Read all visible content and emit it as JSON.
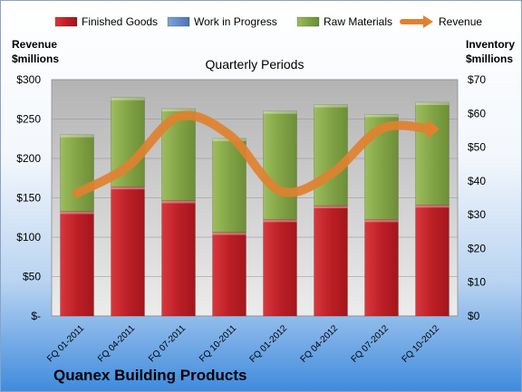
{
  "chart_data": {
    "type": "bar",
    "subtype": "stacked-bar-with-line",
    "title": "Quarterly Periods",
    "company": "Quanex Building Products",
    "left_axis_label": [
      "Revenue",
      "$millions"
    ],
    "right_axis_label": [
      "Inventory",
      "$millions"
    ],
    "left_ticks": [
      "$-",
      "$50",
      "$100",
      "$150",
      "$200",
      "$250",
      "$300"
    ],
    "right_ticks": [
      "$0",
      "$10",
      "$20",
      "$30",
      "$40",
      "$50",
      "$60",
      "$70"
    ],
    "ylim_revenue": [
      0,
      300
    ],
    "ylim_inventory": [
      0,
      70
    ],
    "grid": true,
    "legend_position": "top",
    "categories": [
      "FQ 01-2011",
      "FQ 04-2011",
      "FQ 07-2011",
      "FQ 10-2011",
      "FQ 01-2012",
      "FQ 04-2012",
      "FQ 07-2012",
      "FQ 10-2012"
    ],
    "series": [
      {
        "name": "Finished Goods",
        "axis": "inventory",
        "color": "#c0272d",
        "values": [
          31.0,
          38.3,
          34.2,
          24.8,
          28.6,
          32.7,
          28.6,
          32.9
        ]
      },
      {
        "name": "Work in Progress",
        "axis": "inventory",
        "color": "#5b86c6",
        "values": [
          0,
          0,
          0,
          0,
          0,
          0,
          0,
          0
        ]
      },
      {
        "name": "Raw Materials",
        "axis": "inventory",
        "color": "#8db04b",
        "values": [
          22.7,
          26.4,
          27.2,
          27.8,
          32.1,
          29.9,
          31.1,
          30.4
        ]
      },
      {
        "name": "Revenue",
        "axis": "revenue",
        "type": "line",
        "color": "#e0812f",
        "values": [
          156,
          190,
          253,
          230,
          159,
          180,
          238,
          237
        ]
      }
    ]
  }
}
